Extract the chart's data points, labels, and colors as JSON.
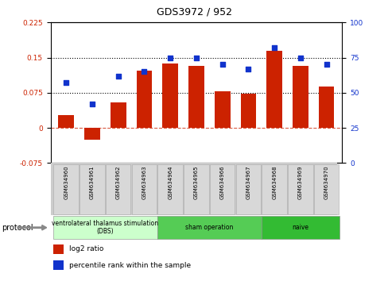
{
  "title": "GDS3972 / 952",
  "samples": [
    "GSM634960",
    "GSM634961",
    "GSM634962",
    "GSM634963",
    "GSM634964",
    "GSM634965",
    "GSM634966",
    "GSM634967",
    "GSM634968",
    "GSM634969",
    "GSM634970"
  ],
  "log2_ratio": [
    0.028,
    -0.025,
    0.055,
    0.122,
    0.138,
    0.132,
    0.078,
    0.073,
    0.165,
    0.132,
    0.088
  ],
  "percentile_rank": [
    57,
    42,
    62,
    65,
    75,
    75,
    70,
    67,
    82,
    75,
    70
  ],
  "bar_color": "#cc2200",
  "dot_color": "#1133cc",
  "left_ylim": [
    -0.075,
    0.225
  ],
  "right_ylim": [
    0,
    100
  ],
  "left_yticks": [
    -0.075,
    0,
    0.075,
    0.15,
    0.225
  ],
  "right_yticks": [
    0,
    25,
    50,
    75,
    100
  ],
  "hlines": [
    0.075,
    0.15
  ],
  "groups": [
    {
      "label": "ventrolateral thalamus stimulation\n(DBS)",
      "span": [
        0,
        3
      ],
      "color": "#ccffcc"
    },
    {
      "label": "sham operation",
      "span": [
        4,
        7
      ],
      "color": "#55cc55"
    },
    {
      "label": "naive",
      "span": [
        8,
        10
      ],
      "color": "#33bb33"
    }
  ],
  "legend_items": [
    {
      "label": "log2 ratio",
      "color": "#cc2200"
    },
    {
      "label": "percentile rank within the sample",
      "color": "#1133cc"
    }
  ],
  "protocol_label": "protocol",
  "background_color": "#ffffff",
  "tick_label_color_left": "#cc2200",
  "tick_label_color_right": "#1133cc"
}
